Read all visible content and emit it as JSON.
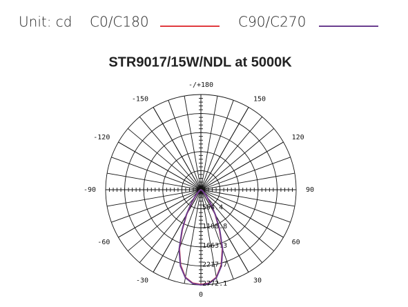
{
  "chart_data": {
    "type": "polar",
    "unit": "Unit: cd",
    "title": "STR9017/15W/NDL at 5000K",
    "x": [
      -90,
      -80,
      -70,
      -60,
      -50,
      -45,
      -40,
      -35,
      -30,
      -25,
      -20,
      -15,
      -10,
      -5,
      0,
      5,
      10,
      15,
      20,
      25,
      30,
      35,
      40,
      45,
      50,
      60,
      70,
      80,
      90
    ],
    "series": [
      {
        "name": "C0/C180",
        "color": "#e0393e",
        "values": [
          0,
          5,
          10,
          30,
          80,
          150,
          270,
          490,
          830,
          1280,
          1830,
          2280,
          2590,
          2730,
          2760,
          2730,
          2590,
          2280,
          1830,
          1280,
          830,
          490,
          270,
          150,
          80,
          30,
          10,
          5,
          0
        ]
      },
      {
        "name": "C90/C270",
        "color": "#6a3d8f",
        "values": [
          0,
          5,
          10,
          30,
          80,
          150,
          280,
          500,
          850,
          1300,
          1850,
          2300,
          2600,
          2740,
          2772.1,
          2740,
          2600,
          2300,
          1850,
          1300,
          850,
          500,
          280,
          150,
          80,
          30,
          10,
          5,
          0
        ]
      }
    ],
    "rlim": [
      0,
      2772.1
    ],
    "rticks": [
      554.4,
      1108.8,
      1663.3,
      2217.7,
      2772.1
    ],
    "angle_ticks": [
      {
        "value": 180,
        "label": "-/+180"
      },
      -150,
      150,
      -120,
      120,
      -90,
      90,
      -60,
      60,
      -30,
      30,
      0
    ]
  }
}
